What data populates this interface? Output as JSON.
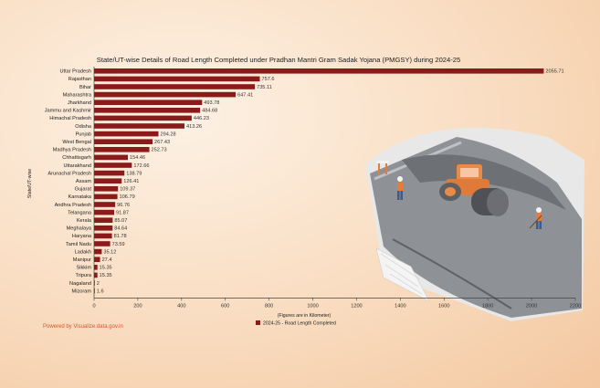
{
  "chart_data": {
    "type": "bar",
    "orientation": "horizontal",
    "title": "State/UT-wise Details of Road Length Completed under Pradhan Mantri Gram Sadak Yojana (PMGSY) during 2024-25",
    "ylabel": "State/UT-wise",
    "xlabel": "(Figures are in Kilometer)",
    "xlim": [
      0,
      2200
    ],
    "xticks": [
      "0",
      "200",
      "400",
      "600",
      "800",
      "1000",
      "1200",
      "1400",
      "1600",
      "1800",
      "2000",
      "2200"
    ],
    "grid": false,
    "legend_position": "bottom",
    "categories": [
      "Uttar Pradesh",
      "Rajasthan",
      "Bihar",
      "Maharashtra",
      "Jharkhand",
      "Jammu and Kashmir",
      "Himachal Pradesh",
      "Odisha",
      "Punjab",
      "West Bengal",
      "Madhya Pradesh",
      "Chhattisgarh",
      "Uttarakhand",
      "Arunachal Pradesh",
      "Assam",
      "Gujarat",
      "Karnataka",
      "Andhra Pradesh",
      "Telangana",
      "Kerala",
      "Meghalaya",
      "Haryana",
      "Tamil Nadu",
      "Ladakh",
      "Manipur",
      "Sikkim",
      "Tripura",
      "Nagaland",
      "Mizoram"
    ],
    "series": [
      {
        "name": "2024-25 - Road Length Completed",
        "color": "#8b1a1a",
        "values": [
          2055.71,
          757.6,
          735.11,
          647.41,
          493.78,
          484.68,
          446.23,
          413.26,
          294.28,
          267.43,
          252.73,
          154.46,
          172.66,
          138.79,
          126.41,
          109.37,
          106.79,
          96.76,
          91.87,
          85.07,
          84.64,
          81.78,
          73.59,
          35.12,
          27.4,
          15.35,
          15.35,
          2,
          1.6
        ],
        "labels": [
          "2055.71",
          "757.6",
          "735.11",
          "647.41",
          "493.78",
          "484.68",
          "446.23",
          "413.26",
          "294.28",
          "267.43",
          "252.73",
          "154.46",
          "172.66",
          "138.79",
          "126.41",
          "109.37",
          "106.79",
          "96.76",
          "91.87",
          "85.07",
          "84.64",
          "81.78",
          "73.59",
          "35.12",
          "27.4",
          "15.35",
          "15.35",
          "2",
          "1.6"
        ]
      }
    ]
  },
  "footer": {
    "credit": "Powered by Visualize.data.gov.in"
  },
  "illustration": {
    "name": "road-construction-illustration"
  }
}
